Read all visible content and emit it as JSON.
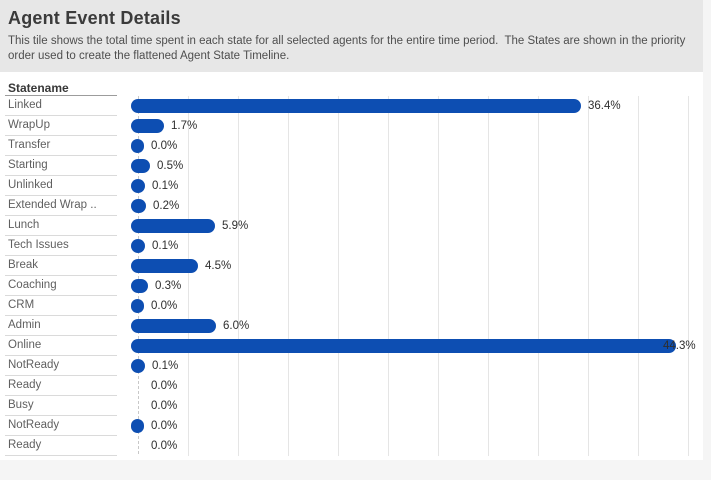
{
  "header": {
    "title": "Agent Event Details",
    "subtitle": "This tile shows the total time spent in each state for all selected agents for the entire time period.  The States are shown in the priority order used to create the flattened Agent State Timeline."
  },
  "chart_data": {
    "type": "bar",
    "orientation": "horizontal",
    "row_header": "Statename",
    "value_unit": "percent of total time",
    "xlim": [
      0,
      46.5
    ],
    "grid": true,
    "legend": "none",
    "bar_color": "#0d4eb2",
    "rows": [
      {
        "state": "Linked",
        "value": 36.4,
        "label": "36.4%",
        "mark": true
      },
      {
        "state": "WrapUp",
        "value": 1.7,
        "label": "1.7%",
        "mark": true
      },
      {
        "state": "Transfer",
        "value": 0.0,
        "label": "0.0%",
        "mark": true
      },
      {
        "state": "Starting",
        "value": 0.5,
        "label": "0.5%",
        "mark": true
      },
      {
        "state": "Unlinked",
        "value": 0.1,
        "label": "0.1%",
        "mark": true
      },
      {
        "state": "Extended Wrap ..",
        "value": 0.2,
        "label": "0.2%",
        "mark": true
      },
      {
        "state": "Lunch",
        "value": 5.9,
        "label": "5.9%",
        "mark": true
      },
      {
        "state": "Tech Issues",
        "value": 0.1,
        "label": "0.1%",
        "mark": true
      },
      {
        "state": "Break",
        "value": 4.5,
        "label": "4.5%",
        "mark": true
      },
      {
        "state": "Coaching",
        "value": 0.3,
        "label": "0.3%",
        "mark": true
      },
      {
        "state": "CRM",
        "value": 0.0,
        "label": "0.0%",
        "mark": true
      },
      {
        "state": "Admin",
        "value": 6.0,
        "label": "6.0%",
        "mark": true
      },
      {
        "state": "Online",
        "value": 44.3,
        "label": "44.3%",
        "mark": true
      },
      {
        "state": "NotReady",
        "value": 0.1,
        "label": "0.1%",
        "mark": true
      },
      {
        "state": "Ready",
        "value": 0.0,
        "label": "0.0%",
        "mark": false
      },
      {
        "state": "Busy",
        "value": 0.0,
        "label": "0.0%",
        "mark": false
      },
      {
        "state": "NotReady",
        "value": 0.0,
        "label": "0.0%",
        "mark": true
      },
      {
        "state": "Ready",
        "value": 0.0,
        "label": "0.0%",
        "mark": false
      }
    ]
  }
}
